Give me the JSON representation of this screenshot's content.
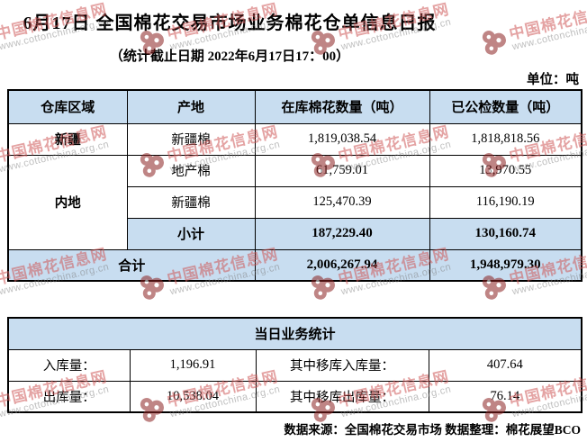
{
  "title": "6月17日 全国棉花交易市场业务棉花仓单信息日报",
  "subtitle": "（统计截止日期 2022年6月17日17：00）",
  "unit_label": "单位：吨",
  "watermark": {
    "name": "中国棉花信息网",
    "url": "www.cottonchina.org.cn"
  },
  "inventory_table": {
    "headers": [
      "仓库区域",
      "产地",
      "在库棉花数量（吨）",
      "已公检数量（吨）"
    ],
    "rows": [
      {
        "region": "新疆",
        "origin": "新疆棉",
        "in_stock": "1,819,038.54",
        "inspected": "1,818,818.56"
      },
      {
        "region": "内地",
        "origin": "地产棉",
        "in_stock": "61,759.01",
        "inspected": "13,970.55"
      },
      {
        "origin": "新疆棉",
        "in_stock": "125,470.39",
        "inspected": "116,190.19"
      },
      {
        "origin": "小计",
        "in_stock": "187,229.40",
        "inspected": "130,160.74"
      }
    ],
    "total": {
      "label": "合计",
      "in_stock": "2,006,267.94",
      "inspected": "1,948,979.30"
    }
  },
  "daily_table": {
    "title": "当日业务统计",
    "rows": [
      {
        "label": "入库量：",
        "value": "1,196.91",
        "label2": "其中移库入库量：",
        "value2": "407.64"
      },
      {
        "label": "出库量：",
        "value": "10,538.04",
        "label2": "其中移库出库量：",
        "value2": "76.14"
      }
    ]
  },
  "footer": "数据来源：全国棉花交易市场  数据整理：棉花展望BCO",
  "colors": {
    "header_bg": "#c8ddf0",
    "border": "#000000",
    "watermark_red": "#cd5858"
  }
}
